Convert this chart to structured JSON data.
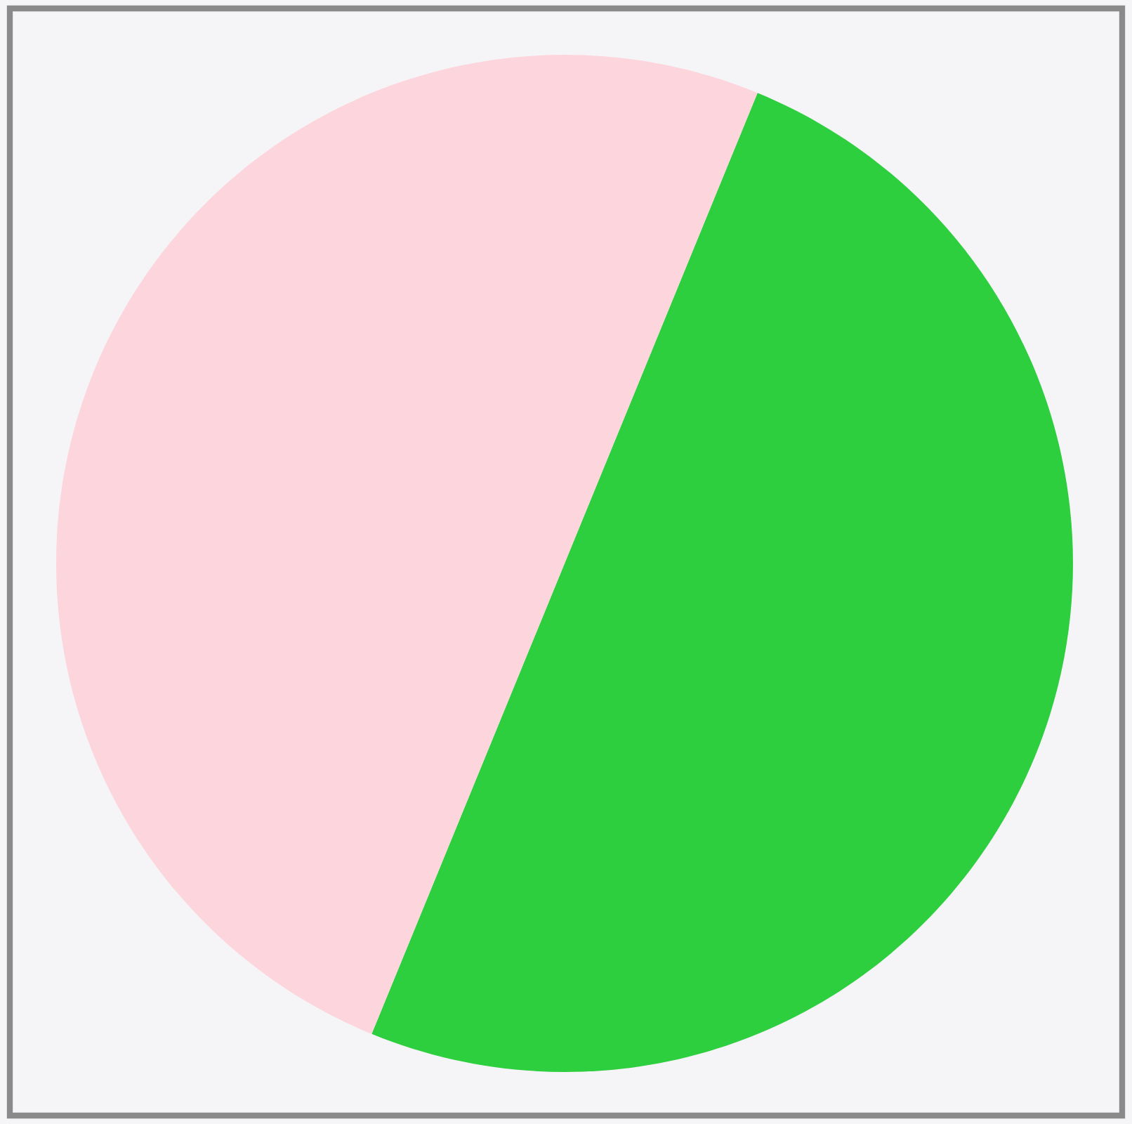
{
  "chart_data": {
    "type": "pie",
    "categories": [
      null,
      null
    ],
    "values": [
      50,
      50
    ],
    "colors": [
      "#2ecf3e",
      "#fdd5dc"
    ]
  }
}
